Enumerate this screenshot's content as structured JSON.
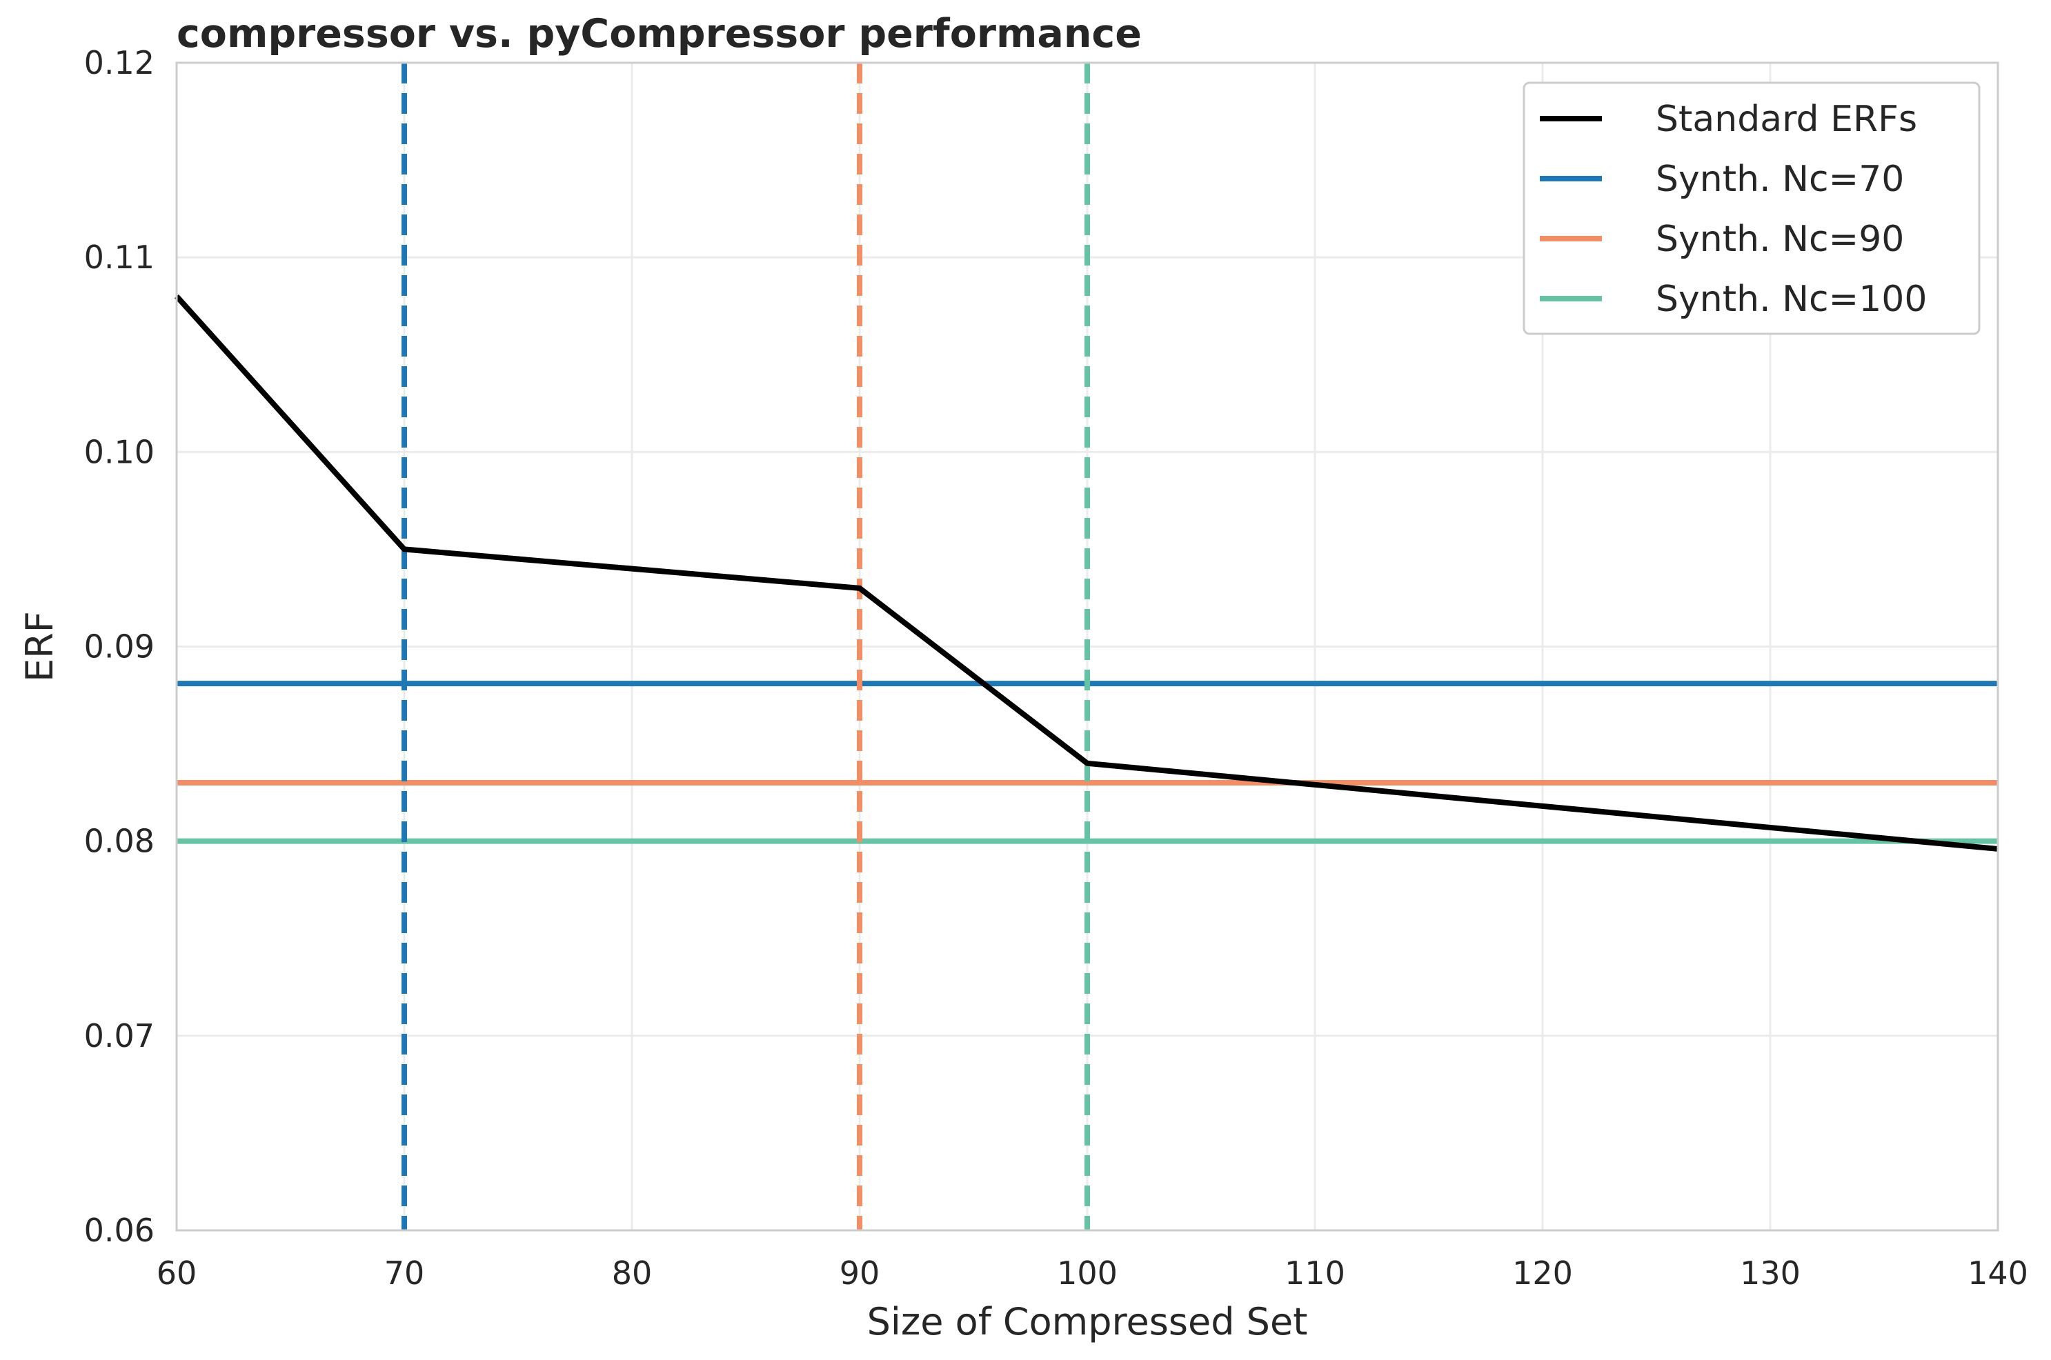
{
  "chart_data": {
    "type": "line",
    "title": "compressor vs. pyCompressor performance",
    "xlabel": "Size of Compressed Set",
    "ylabel": "ERF",
    "xlim": [
      60,
      140
    ],
    "ylim": [
      0.06,
      0.12
    ],
    "xticks": [
      60,
      70,
      80,
      90,
      100,
      110,
      120,
      130,
      140
    ],
    "xtick_labels": [
      "60",
      "70",
      "80",
      "90",
      "100",
      "110",
      "120",
      "130",
      "140"
    ],
    "yticks": [
      0.06,
      0.07,
      0.08,
      0.09,
      0.1,
      0.11,
      0.12
    ],
    "ytick_labels": [
      "0.06",
      "0.07",
      "0.08",
      "0.09",
      "0.10",
      "0.11",
      "0.12"
    ],
    "grid": true,
    "legend_position": "top-right",
    "series": [
      {
        "name": "Standard ERFs",
        "color": "#000000",
        "style": "solid",
        "x": [
          60,
          70,
          90,
          100,
          140
        ],
        "y": [
          0.108,
          0.095,
          0.093,
          0.084,
          0.0796
        ]
      },
      {
        "name": "Synth. Nc=70",
        "color": "#1f77b4",
        "style": "solid",
        "orientation": "horizontal",
        "y": 0.0881
      },
      {
        "name": "Synth. Nc=90",
        "color": "#f28e65",
        "style": "solid",
        "orientation": "horizontal",
        "y": 0.083
      },
      {
        "name": "Synth. Nc=100",
        "color": "#66c2a5",
        "style": "solid",
        "orientation": "horizontal",
        "y": 0.08
      }
    ],
    "vlines": [
      {
        "x": 70,
        "color": "#1f77b4",
        "style": "dashed"
      },
      {
        "x": 90,
        "color": "#f28e65",
        "style": "dashed"
      },
      {
        "x": 100,
        "color": "#66c2a5",
        "style": "dashed"
      }
    ]
  }
}
